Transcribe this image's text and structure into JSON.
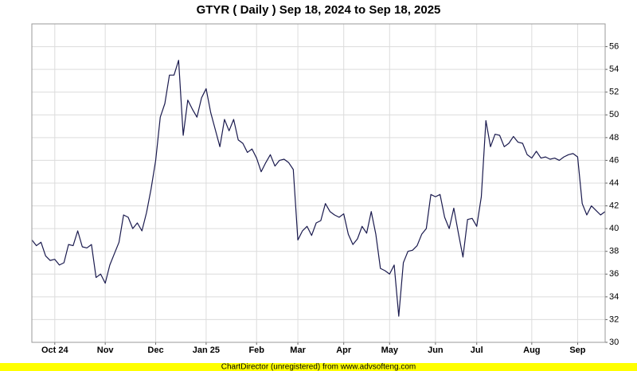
{
  "chart_data": {
    "type": "line",
    "title": "GTYR ( Daily ) Sep 18, 2024 to Sep 18, 2025",
    "footer": "ChartDirector (unregistered) from www.advsofteng.com",
    "categories": [
      null,
      null,
      null,
      null,
      null,
      "Oct 24",
      null,
      null,
      null,
      null,
      null,
      null,
      null,
      null,
      null,
      null,
      "Nov",
      null,
      null,
      null,
      null,
      null,
      null,
      null,
      null,
      null,
      null,
      "Dec",
      null,
      null,
      null,
      null,
      null,
      null,
      null,
      null,
      null,
      null,
      "Jan 25",
      null,
      null,
      null,
      null,
      null,
      null,
      null,
      null,
      null,
      null,
      "Feb",
      null,
      null,
      null,
      null,
      null,
      null,
      null,
      null,
      "Mar",
      null,
      null,
      null,
      null,
      null,
      null,
      null,
      null,
      null,
      "Apr",
      null,
      null,
      null,
      null,
      null,
      null,
      null,
      null,
      null,
      "May",
      null,
      null,
      null,
      null,
      null,
      null,
      null,
      null,
      null,
      "Jun",
      null,
      null,
      null,
      null,
      null,
      null,
      null,
      null,
      "Jul",
      null,
      null,
      null,
      null,
      null,
      null,
      null,
      null,
      null,
      null,
      null,
      "Aug",
      null,
      null,
      null,
      null,
      null,
      null,
      null,
      null,
      null,
      "Sep",
      null,
      null,
      null,
      null,
      null,
      null
    ],
    "series": [
      {
        "color": "#1a1a4e",
        "values": [
          39.0,
          38.5,
          38.8,
          37.6,
          37.2,
          37.3,
          36.8,
          37.0,
          38.6,
          38.5,
          39.8,
          38.4,
          38.3,
          38.6,
          35.7,
          36.0,
          35.2,
          36.8,
          37.8,
          38.8,
          41.2,
          41.0,
          40.0,
          40.5,
          39.8,
          41.4,
          43.5,
          46.0,
          49.8,
          51.0,
          53.5,
          53.5,
          54.8,
          48.2,
          51.3,
          50.5,
          49.8,
          51.5,
          52.3,
          50.2,
          48.7,
          47.2,
          49.6,
          48.6,
          49.6,
          47.8,
          47.5,
          46.7,
          47.0,
          46.2,
          45.0,
          45.8,
          46.5,
          45.5,
          46.0,
          46.1,
          45.8,
          45.2,
          39.0,
          39.8,
          40.2,
          39.4,
          40.5,
          40.7,
          42.2,
          41.5,
          41.2,
          41.0,
          41.3,
          39.5,
          38.6,
          39.1,
          40.2,
          39.6,
          41.5,
          39.5,
          36.5,
          36.3,
          36.0,
          36.8,
          32.3,
          37.0,
          38.0,
          38.1,
          38.5,
          39.5,
          40.0,
          43.0,
          42.8,
          43.0,
          41.0,
          40.0,
          41.8,
          39.6,
          37.5,
          40.8,
          40.9,
          40.2,
          42.8,
          49.5,
          47.2,
          48.3,
          48.2,
          47.2,
          47.5,
          48.1,
          47.6,
          47.5,
          46.5,
          46.2,
          46.8,
          46.2,
          46.3,
          46.1,
          46.2,
          46.0,
          46.3,
          46.5,
          46.6,
          46.3,
          42.2,
          41.2,
          42.0,
          41.6,
          41.2,
          41.5
        ]
      }
    ],
    "ylim": [
      30,
      58
    ],
    "yticks": [
      30,
      32,
      34,
      36,
      38,
      40,
      42,
      44,
      46,
      48,
      50,
      52,
      54,
      56
    ],
    "grid": true
  }
}
